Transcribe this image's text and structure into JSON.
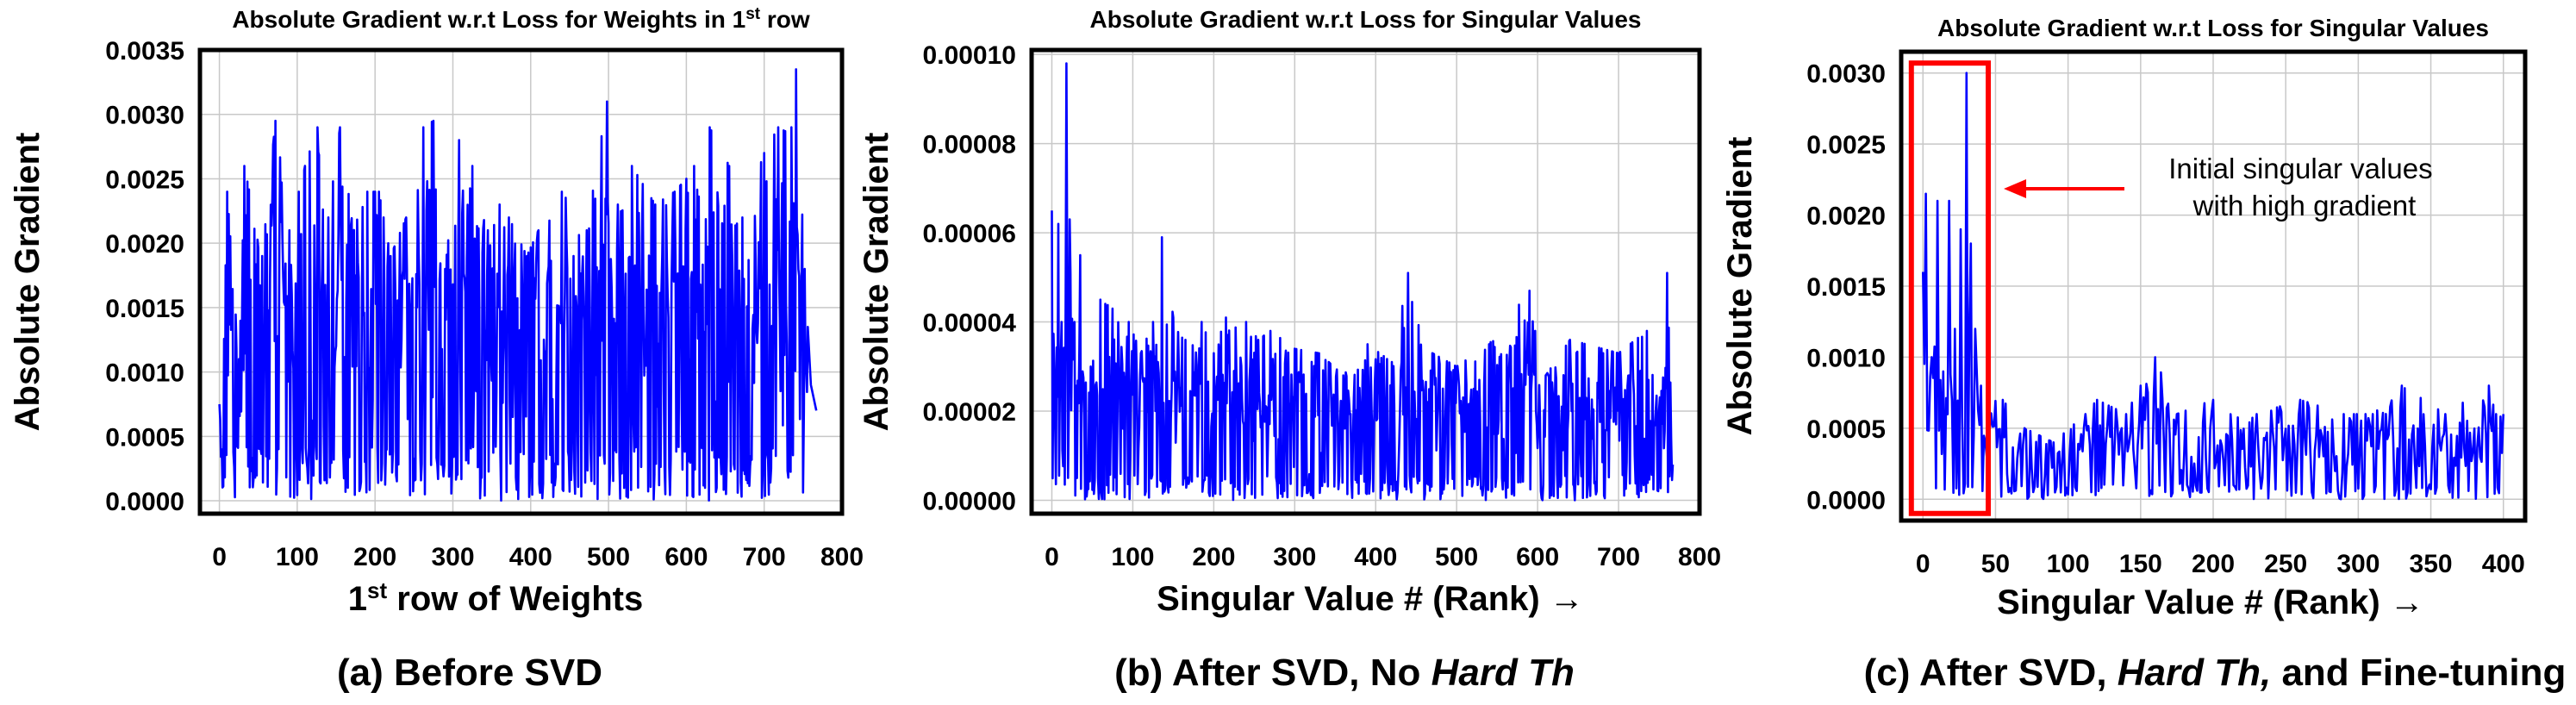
{
  "chart_data": [
    {
      "type": "line",
      "title": "Absolute Gradient w.r.t Loss for Weights in 1",
      "title_sup": "st",
      "title_suffix": " row",
      "xlabel": "1",
      "xlabel_sup": "st",
      "xlabel_suffix": " row of Weights",
      "ylabel": "Absolute Gradient",
      "caption_label": "(a)",
      "caption_parts": [
        {
          "text": "Before SVD",
          "italic": false
        }
      ],
      "xlim": [
        -25,
        800
      ],
      "ylim": [
        -0.0001,
        0.0035
      ],
      "xticks": [
        0,
        100,
        200,
        300,
        400,
        500,
        600,
        700,
        800
      ],
      "xtick_labels": [
        "0",
        "100",
        "200",
        "300",
        "400",
        "500",
        "600",
        "700",
        "800"
      ],
      "yticks": [
        0.0,
        0.0005,
        0.001,
        0.0015,
        0.002,
        0.0025,
        0.003,
        0.0035
      ],
      "ytick_labels": [
        "0.0000",
        "0.0005",
        "0.0010",
        "0.0015",
        "0.0020",
        "0.0025",
        "0.0030",
        "0.0035"
      ],
      "grid": true,
      "color": "#0000ff",
      "series": [
        {
          "x_start": 0,
          "x_end": 767,
          "peaks": [
            [
              0,
              0.00075
            ],
            [
              3,
              0.0004
            ],
            [
              10,
              0.0024
            ],
            [
              25,
              0.0011
            ],
            [
              32,
              0.0026
            ],
            [
              55,
              0.0019
            ],
            [
              72,
              0.00295
            ],
            [
              90,
              0.0021
            ],
            [
              110,
              0.0026
            ],
            [
              126,
              0.0029
            ],
            [
              140,
              0.0022
            ],
            [
              155,
              0.0029
            ],
            [
              172,
              0.0021
            ],
            [
              190,
              0.0024
            ],
            [
              205,
              0.0024
            ],
            [
              220,
              0.0019
            ],
            [
              240,
              0.0022
            ],
            [
              262,
              0.0029
            ],
            [
              275,
              0.00295
            ],
            [
              290,
              0.0018
            ],
            [
              308,
              0.0028
            ],
            [
              325,
              0.0026
            ],
            [
              345,
              0.0021
            ],
            [
              360,
              0.0023
            ],
            [
              372,
              0.0022
            ],
            [
              395,
              0.0019
            ],
            [
              410,
              0.0021
            ],
            [
              440,
              0.0024
            ],
            [
              472,
              0.0021
            ],
            [
              498,
              0.0031
            ],
            [
              512,
              0.0023
            ],
            [
              530,
              0.0026
            ],
            [
              560,
              0.0023
            ],
            [
              585,
              0.0024
            ],
            [
              600,
              0.0025
            ],
            [
              610,
              0.0026
            ],
            [
              630,
              0.0029
            ],
            [
              655,
              0.0026
            ],
            [
              672,
              0.0022
            ],
            [
              700,
              0.0027
            ],
            [
              718,
              0.0029
            ],
            [
              735,
              0.0029
            ],
            [
              741,
              0.00335
            ],
            [
              752,
              0.0018
            ],
            [
              760,
              0.0009
            ],
            [
              767,
              0.0007
            ]
          ],
          "base": 0.00085,
          "spread": 0.0006,
          "n_points": 768
        }
      ]
    },
    {
      "type": "line",
      "title": "Absolute Gradient w.r.t Loss for Singular Values",
      "xlabel": "Singular Value # (Rank) →",
      "ylabel": "Absolute Gradient",
      "caption_label": "(b)",
      "caption_parts": [
        {
          "text": "After SVD, No ",
          "italic": false
        },
        {
          "text": "Hard Th",
          "italic": true
        }
      ],
      "xlim": [
        -25,
        800
      ],
      "ylim": [
        -3e-06,
        0.000101
      ],
      "xticks": [
        0,
        100,
        200,
        300,
        400,
        500,
        600,
        700,
        800
      ],
      "xtick_labels": [
        "0",
        "100",
        "200",
        "300",
        "400",
        "500",
        "600",
        "700",
        "800"
      ],
      "yticks": [
        0.0,
        2e-05,
        4e-05,
        6e-05,
        8e-05,
        0.0001
      ],
      "ytick_labels": [
        "0.00000",
        "0.00002",
        "0.00004",
        "0.00006",
        "0.00008",
        "0.00010"
      ],
      "grid": true,
      "color": "#0000ff",
      "series": [
        {
          "x_start": 0,
          "x_end": 767,
          "peaks": [
            [
              0,
              6.5e-05
            ],
            [
              3,
              3e-05
            ],
            [
              8,
              6.2e-05
            ],
            [
              12,
              4e-05
            ],
            [
              18,
              9.8e-05
            ],
            [
              22,
              6.3e-05
            ],
            [
              28,
              4e-05
            ],
            [
              35,
              5.5e-05
            ],
            [
              48,
              3e-05
            ],
            [
              60,
              4.5e-05
            ],
            [
              75,
              4.3e-05
            ],
            [
              95,
              4e-05
            ],
            [
              110,
              3.3e-05
            ],
            [
              125,
              4e-05
            ],
            [
              136,
              5.9e-05
            ],
            [
              150,
              4.1e-05
            ],
            [
              165,
              3.6e-05
            ],
            [
              185,
              4e-05
            ],
            [
              200,
              3.3e-05
            ],
            [
              215,
              4.1e-05
            ],
            [
              240,
              4e-05
            ],
            [
              255,
              3.6e-05
            ],
            [
              270,
              3.8e-05
            ],
            [
              300,
              3.4e-05
            ],
            [
              330,
              3.3e-05
            ],
            [
              360,
              2.8e-05
            ],
            [
              390,
              3.5e-05
            ],
            [
              420,
              3.1e-05
            ],
            [
              440,
              5.1e-05
            ],
            [
              470,
              3.3e-05
            ],
            [
              500,
              3e-05
            ],
            [
              540,
              3.5e-05
            ],
            [
              590,
              4.7e-05
            ],
            [
              610,
              2.8e-05
            ],
            [
              640,
              3.6e-05
            ],
            [
              700,
              3.3e-05
            ],
            [
              735,
              3.8e-05
            ],
            [
              750,
              2e-05
            ],
            [
              760,
              5.1e-05
            ],
            [
              767,
              8e-06
            ]
          ],
          "base": 1.2e-05,
          "spread": 9e-06,
          "n_points": 768
        }
      ]
    },
    {
      "type": "line",
      "title": "Absolute Gradient w.r.t Loss for Singular Values",
      "xlabel": "Singular Value # (Rank) →",
      "ylabel": "Absolute Gradient",
      "caption_label": "(c)",
      "caption_parts": [
        {
          "text": "After SVD, ",
          "italic": false
        },
        {
          "text": "Hard Th,",
          "italic": true
        },
        {
          "text": " and Fine-tuning",
          "italic": false
        }
      ],
      "xlim": [
        -15,
        415
      ],
      "ylim": [
        -0.00015,
        0.00315
      ],
      "xticks": [
        0,
        50,
        100,
        150,
        200,
        250,
        300,
        350,
        400
      ],
      "xtick_labels": [
        "0",
        "50",
        "100",
        "150",
        "200",
        "250",
        "300",
        "350",
        "400"
      ],
      "yticks": [
        0.0,
        0.0005,
        0.001,
        0.0015,
        0.002,
        0.0025,
        0.003
      ],
      "ytick_labels": [
        "0.0000",
        "0.0005",
        "0.0010",
        "0.0015",
        "0.0020",
        "0.0025",
        "0.0030"
      ],
      "grid": true,
      "color": "#0000ff",
      "annotation": {
        "text_line1": "Initial singular values",
        "text_line2": "with high gradient",
        "box_x": [
          -8,
          45
        ],
        "box_y": [
          -0.0001,
          0.00307
        ],
        "box_color": "#ff0000"
      },
      "series": [
        {
          "x_start": 0,
          "x_end": 400,
          "peaks": [
            [
              0,
              0.0016
            ],
            [
              2,
              0.00215
            ],
            [
              6,
              0.001
            ],
            [
              10,
              0.0021
            ],
            [
              14,
              0.0009
            ],
            [
              18,
              0.0021
            ],
            [
              22,
              0.0012
            ],
            [
              26,
              0.0019
            ],
            [
              30,
              0.003
            ],
            [
              33,
              0.0018
            ],
            [
              36,
              0.0012
            ],
            [
              40,
              0.0008
            ],
            [
              45,
              0.0008
            ],
            [
              55,
              0.0007
            ],
            [
              70,
              0.0005
            ],
            [
              90,
              0.0004
            ],
            [
              112,
              0.0006
            ],
            [
              120,
              0.0007
            ],
            [
              140,
              0.0006
            ],
            [
              160,
              0.001
            ],
            [
              175,
              0.0006
            ],
            [
              200,
              0.0007
            ],
            [
              230,
              0.0006
            ],
            [
              260,
              0.0007
            ],
            [
              290,
              0.0006
            ],
            [
              310,
              0.0006
            ],
            [
              330,
              0.0008
            ],
            [
              360,
              0.0006
            ],
            [
              390,
              0.0008
            ],
            [
              395,
              0.0006
            ],
            [
              400,
              0.0006
            ]
          ],
          "base": 0.00022,
          "spread": 0.00015,
          "n_points": 401
        }
      ]
    }
  ]
}
